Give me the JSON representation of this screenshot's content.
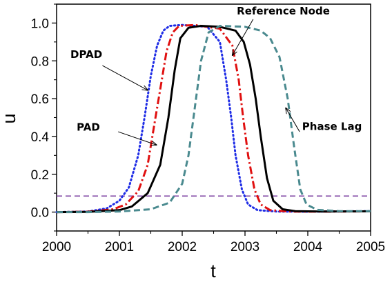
{
  "chart_data": {
    "type": "line",
    "title": "",
    "xlabel": "t",
    "ylabel": "u",
    "xlim": [
      2000,
      2005
    ],
    "ylim": [
      -0.1,
      1.1
    ],
    "xticks": [
      2000,
      2001,
      2002,
      2003,
      2004,
      2005
    ],
    "yticks": [
      0.0,
      0.2,
      0.4,
      0.6,
      0.8,
      1.0
    ],
    "xtick_labels": [
      "2000",
      "2001",
      "2002",
      "2003",
      "2004",
      "2005"
    ],
    "ytick_labels": [
      "0.0",
      "0.2",
      "0.4",
      "0.6",
      "0.8",
      "1.0"
    ],
    "grid": false,
    "threshold": {
      "y": 0.085,
      "color": "#7b3fa0"
    },
    "series": [
      {
        "key": "dpad",
        "color": "#1f2de6",
        "dash": "dotted",
        "points": [
          [
            2000,
            0.0
          ],
          [
            2000.5,
            0.003
          ],
          [
            2000.8,
            0.02
          ],
          [
            2001.0,
            0.06
          ],
          [
            2001.15,
            0.13
          ],
          [
            2001.3,
            0.3
          ],
          [
            2001.4,
            0.5
          ],
          [
            2001.5,
            0.72
          ],
          [
            2001.6,
            0.88
          ],
          [
            2001.7,
            0.96
          ],
          [
            2001.8,
            0.985
          ],
          [
            2002.0,
            0.99
          ],
          [
            2002.4,
            0.98
          ],
          [
            2002.6,
            0.9
          ],
          [
            2002.7,
            0.7
          ],
          [
            2002.78,
            0.5
          ],
          [
            2002.85,
            0.3
          ],
          [
            2002.95,
            0.12
          ],
          [
            2003.05,
            0.04
          ],
          [
            2003.2,
            0.01
          ],
          [
            2003.5,
            0.003
          ],
          [
            2004,
            0.002
          ],
          [
            2005,
            0.005
          ]
        ]
      },
      {
        "key": "pad",
        "color": "#e01010",
        "dash": "dashdot",
        "points": [
          [
            2000,
            0.0
          ],
          [
            2000.5,
            0.002
          ],
          [
            2000.9,
            0.015
          ],
          [
            2001.1,
            0.04
          ],
          [
            2001.3,
            0.11
          ],
          [
            2001.45,
            0.25
          ],
          [
            2001.55,
            0.45
          ],
          [
            2001.65,
            0.65
          ],
          [
            2001.75,
            0.85
          ],
          [
            2001.85,
            0.95
          ],
          [
            2001.95,
            0.985
          ],
          [
            2002.2,
            0.99
          ],
          [
            2002.6,
            0.97
          ],
          [
            2002.8,
            0.88
          ],
          [
            2002.9,
            0.7
          ],
          [
            2002.97,
            0.5
          ],
          [
            2003.05,
            0.3
          ],
          [
            2003.15,
            0.12
          ],
          [
            2003.25,
            0.04
          ],
          [
            2003.4,
            0.01
          ],
          [
            2003.7,
            0.003
          ],
          [
            2004,
            0.002
          ],
          [
            2005,
            0.004
          ]
        ]
      },
      {
        "key": "reference",
        "color": "#000000",
        "dash": "solid",
        "points": [
          [
            2000,
            0.0
          ],
          [
            2000.5,
            0.001
          ],
          [
            2001.0,
            0.01
          ],
          [
            2001.2,
            0.03
          ],
          [
            2001.45,
            0.1
          ],
          [
            2001.65,
            0.25
          ],
          [
            2001.78,
            0.5
          ],
          [
            2001.88,
            0.75
          ],
          [
            2001.97,
            0.92
          ],
          [
            2002.1,
            0.975
          ],
          [
            2002.3,
            0.985
          ],
          [
            2002.6,
            0.98
          ],
          [
            2002.85,
            0.96
          ],
          [
            2002.98,
            0.9
          ],
          [
            2003.08,
            0.78
          ],
          [
            2003.17,
            0.6
          ],
          [
            2003.25,
            0.4
          ],
          [
            2003.35,
            0.18
          ],
          [
            2003.45,
            0.06
          ],
          [
            2003.6,
            0.015
          ],
          [
            2003.8,
            0.005
          ],
          [
            2004.2,
            0.003
          ],
          [
            2005,
            0.004
          ]
        ]
      },
      {
        "key": "phase_lag",
        "color": "#4a8a8f",
        "dash": "dashed",
        "points": [
          [
            2000,
            0.0
          ],
          [
            2000.5,
            0.0
          ],
          [
            2001.0,
            0.003
          ],
          [
            2001.5,
            0.015
          ],
          [
            2001.8,
            0.05
          ],
          [
            2002.0,
            0.15
          ],
          [
            2002.1,
            0.3
          ],
          [
            2002.2,
            0.55
          ],
          [
            2002.3,
            0.8
          ],
          [
            2002.42,
            0.95
          ],
          [
            2002.6,
            0.985
          ],
          [
            2003.0,
            0.98
          ],
          [
            2003.25,
            0.96
          ],
          [
            2003.4,
            0.92
          ],
          [
            2003.55,
            0.82
          ],
          [
            2003.68,
            0.6
          ],
          [
            2003.78,
            0.35
          ],
          [
            2003.88,
            0.12
          ],
          [
            2003.98,
            0.04
          ],
          [
            2004.15,
            0.012
          ],
          [
            2004.5,
            0.005
          ],
          [
            2005,
            0.005
          ]
        ]
      }
    ],
    "annotations": [
      {
        "key": "dpad",
        "text": "DPAD",
        "text_at": [
          2000.22,
          0.815
        ],
        "arrow_from": [
          2000.73,
          0.775
        ],
        "arrow_to": [
          2001.45,
          0.645
        ]
      },
      {
        "key": "pad",
        "text": "PAD",
        "text_at": [
          2000.32,
          0.43
        ],
        "arrow_from": [
          2000.98,
          0.425
        ],
        "arrow_to": [
          2001.59,
          0.355
        ]
      },
      {
        "key": "reference",
        "text": "Reference Node",
        "text_at": [
          2002.87,
          1.045
        ],
        "arrow_from": [
          2003.13,
          1.02
        ],
        "arrow_to": [
          2002.8,
          0.83
        ]
      },
      {
        "key": "phase_lag",
        "text": "Phase Lag",
        "text_at": [
          2003.91,
          0.435
        ],
        "arrow_from": [
          2003.87,
          0.425
        ],
        "arrow_to": [
          2003.65,
          0.55
        ]
      }
    ]
  }
}
